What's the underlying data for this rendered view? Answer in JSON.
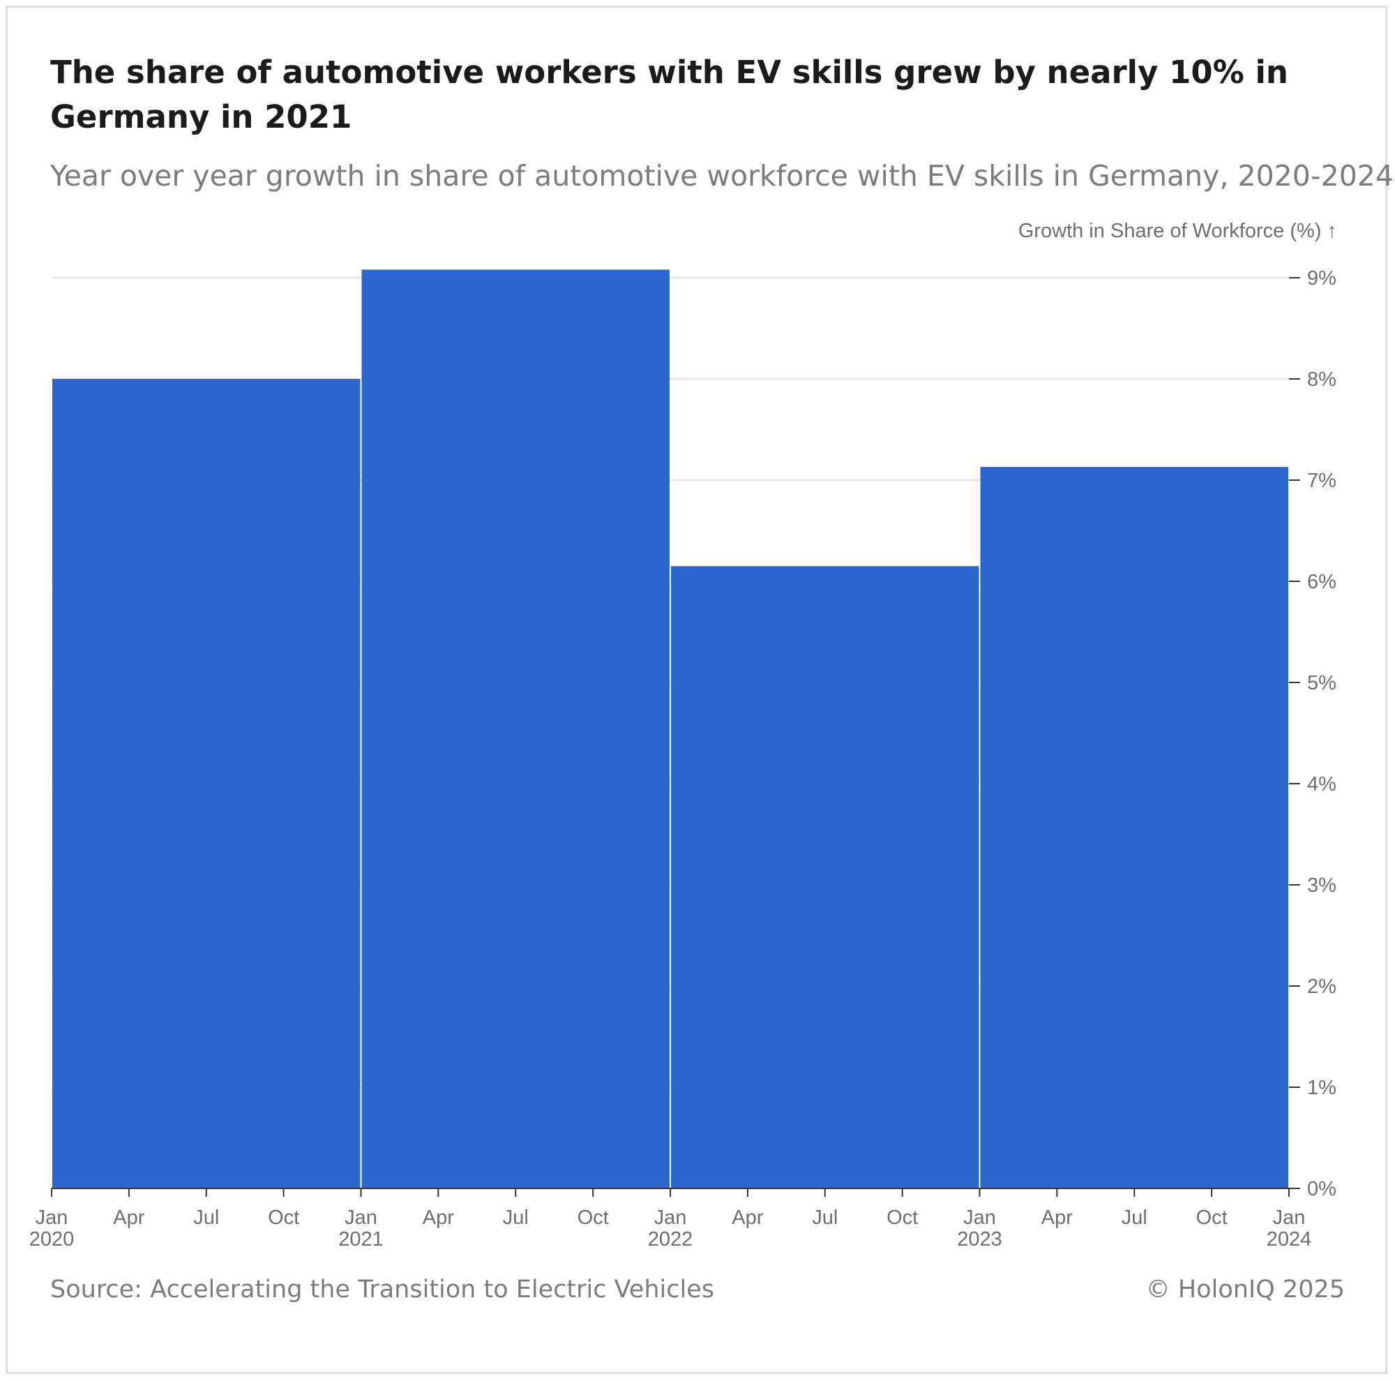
{
  "title": "The share of automotive workers with EV skills grew by nearly 10% in Germany in 2021",
  "subtitle": "Year over year growth in share of automotive workforce with EV skills in Germany, 2020-2024",
  "source": "Source: Accelerating the Transition to Electric Vehicles",
  "credit": "© HolonIQ 2025",
  "colors": {
    "bar": "#2a66cc",
    "grid": "#e6e6e6",
    "axis": "#333333",
    "text": "#6e6e6e"
  },
  "chart_data": {
    "type": "bar",
    "title": "The share of automotive workers with EV skills grew by nearly 10% in Germany in 2021",
    "ylabel": "Growth in Share of Workforce (%) ↑",
    "y_axis_side": "right",
    "ylim": [
      0,
      9
    ],
    "y_ticks": [
      0,
      1,
      2,
      3,
      4,
      5,
      6,
      7,
      8,
      9
    ],
    "y_tick_labels": [
      "0%",
      "1%",
      "2%",
      "3%",
      "4%",
      "5%",
      "6%",
      "7%",
      "8%",
      "9%"
    ],
    "grid": true,
    "xlim": [
      "2020-01",
      "2024-01"
    ],
    "x_ticks": [
      {
        "date": "2020-01",
        "label": "Jan",
        "year": "2020"
      },
      {
        "date": "2020-04",
        "label": "Apr",
        "year": ""
      },
      {
        "date": "2020-07",
        "label": "Jul",
        "year": ""
      },
      {
        "date": "2020-10",
        "label": "Oct",
        "year": ""
      },
      {
        "date": "2021-01",
        "label": "Jan",
        "year": "2021"
      },
      {
        "date": "2021-04",
        "label": "Apr",
        "year": ""
      },
      {
        "date": "2021-07",
        "label": "Jul",
        "year": ""
      },
      {
        "date": "2021-10",
        "label": "Oct",
        "year": ""
      },
      {
        "date": "2022-01",
        "label": "Jan",
        "year": "2022"
      },
      {
        "date": "2022-04",
        "label": "Apr",
        "year": ""
      },
      {
        "date": "2022-07",
        "label": "Jul",
        "year": ""
      },
      {
        "date": "2022-10",
        "label": "Oct",
        "year": ""
      },
      {
        "date": "2023-01",
        "label": "Jan",
        "year": "2023"
      },
      {
        "date": "2023-04",
        "label": "Apr",
        "year": ""
      },
      {
        "date": "2023-07",
        "label": "Jul",
        "year": ""
      },
      {
        "date": "2023-10",
        "label": "Oct",
        "year": ""
      },
      {
        "date": "2024-01",
        "label": "Jan",
        "year": "2024"
      }
    ],
    "bars": [
      {
        "start": "2020-01",
        "end": "2021-01",
        "value": 8.0
      },
      {
        "start": "2021-01",
        "end": "2022-01",
        "value": 9.08
      },
      {
        "start": "2022-01",
        "end": "2023-01",
        "value": 6.15
      },
      {
        "start": "2023-01",
        "end": "2024-01",
        "value": 7.13
      }
    ]
  }
}
